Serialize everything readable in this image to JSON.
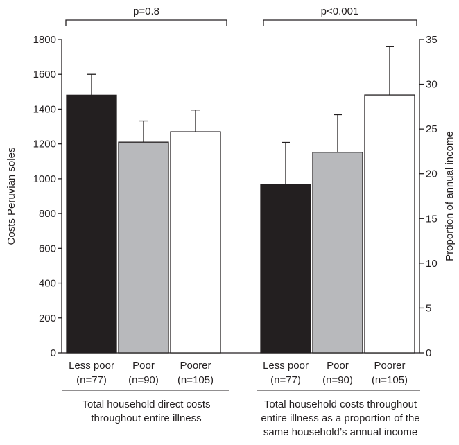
{
  "chart_data": {
    "type": "bar",
    "series_name_source": "category labels",
    "left_axis": {
      "label": "Costs Peruvian soles",
      "ylim": [
        0,
        1800
      ],
      "ticks": [
        "0",
        "200",
        "400",
        "600",
        "800",
        "1000",
        "1200",
        "1400",
        "1600",
        "1800"
      ]
    },
    "right_axis": {
      "label": "Proportion of annual income",
      "ylim": [
        0,
        35
      ],
      "ticks": [
        "0",
        "5",
        "10",
        "15",
        "20",
        "25",
        "30",
        "35"
      ]
    },
    "groups": [
      {
        "label_lines": [
          "Total household direct costs",
          "throughout entire illness"
        ],
        "axis": "left",
        "p_value": "p=0.8",
        "bars": [
          {
            "category_line1": "Less poor",
            "category_line2": "(n=77)",
            "value": 1480,
            "error_upper": 1600,
            "color": "#231f20"
          },
          {
            "category_line1": "Poor",
            "category_line2": "(n=90)",
            "value": 1210,
            "error_upper": 1332,
            "color": "#b8b9bc"
          },
          {
            "category_line1": "Poorer",
            "category_line2": "(n=105)",
            "value": 1270,
            "error_upper": 1395,
            "color": "#ffffff"
          }
        ]
      },
      {
        "label_lines": [
          "Total household costs throughout",
          "entire illness as a proportion of the",
          "same household’s annual income"
        ],
        "axis": "right",
        "p_value": "p<0.001",
        "bars": [
          {
            "category_line1": "Less poor",
            "category_line2": "(n=77)",
            "value": 18.8,
            "error_upper": 23.5,
            "color": "#231f20"
          },
          {
            "category_line1": "Poor",
            "category_line2": "(n=90)",
            "value": 22.4,
            "error_upper": 26.6,
            "color": "#b8b9bc"
          },
          {
            "category_line1": "Poorer",
            "category_line2": "(n=105)",
            "value": 28.8,
            "error_upper": 34.2,
            "color": "#ffffff"
          }
        ]
      }
    ],
    "grid": false,
    "legend": "none"
  }
}
